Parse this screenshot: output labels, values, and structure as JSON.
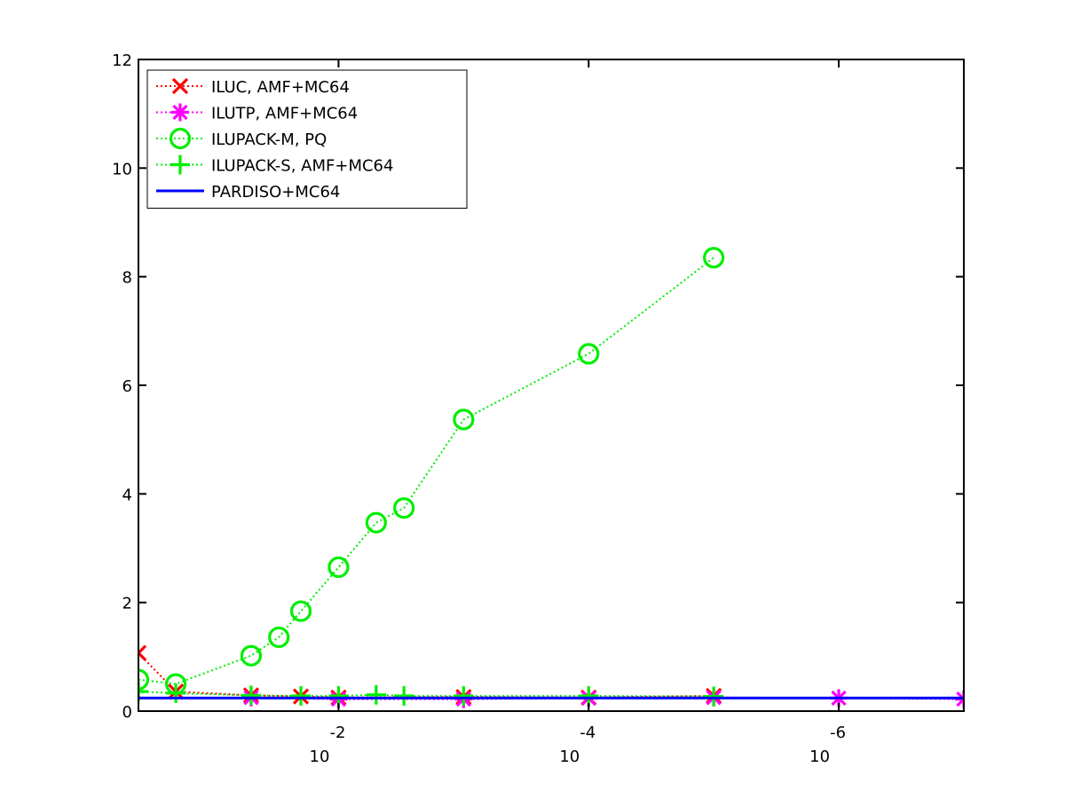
{
  "chart_data": {
    "type": "line",
    "title": "",
    "xlabel": "",
    "ylabel": "",
    "x_scale": "log",
    "x_reversed": true,
    "xlim": [
      0.3981,
      1e-07
    ],
    "ylim": [
      0,
      12
    ],
    "x_ticks": [
      {
        "value": 0.01,
        "base": "10",
        "exponent": "-2"
      },
      {
        "value": 0.0001,
        "base": "10",
        "exponent": "-4"
      },
      {
        "value": 1e-06,
        "base": "10",
        "exponent": "-6"
      }
    ],
    "y_ticks": [
      0,
      2,
      4,
      6,
      8,
      10,
      12
    ],
    "y_tick_labels": [
      "0",
      "2",
      "4",
      "6",
      "8",
      "10",
      "12"
    ],
    "grid": false,
    "legend_position": "top-left",
    "series": [
      {
        "name": "ILUC, AMF+MC64",
        "color": "#ff0000",
        "marker": "x",
        "line": "dotted",
        "points": [
          [
            0.3981,
            1.07
          ],
          [
            0.2,
            0.36
          ],
          [
            0.05,
            0.29
          ],
          [
            0.02,
            0.27
          ],
          [
            0.01,
            0.25
          ],
          [
            0.001,
            0.26
          ],
          [
            0.0001,
            0.25
          ],
          [
            1e-05,
            0.28
          ]
        ]
      },
      {
        "name": "ILUTP, AMF+MC64",
        "color": "#ff00ff",
        "marker": "asterisk",
        "line": "dotted",
        "points": [
          [
            0.05,
            0.25
          ],
          [
            0.01,
            0.22
          ],
          [
            0.001,
            0.22
          ],
          [
            0.0001,
            0.24
          ],
          [
            1e-05,
            0.25
          ],
          [
            1e-06,
            0.24
          ],
          [
            1e-07,
            0.22
          ]
        ]
      },
      {
        "name": "ILUPACK-M, PQ",
        "color": "#00ee00",
        "marker": "o",
        "line": "dotted",
        "points": [
          [
            0.3981,
            0.58
          ],
          [
            0.2,
            0.5
          ],
          [
            0.05,
            1.02
          ],
          [
            0.03,
            1.36
          ],
          [
            0.02,
            1.84
          ],
          [
            0.01,
            2.65
          ],
          [
            0.005,
            3.47
          ],
          [
            0.003,
            3.74
          ],
          [
            0.001,
            5.37
          ],
          [
            0.0001,
            6.58
          ],
          [
            1e-05,
            8.35
          ]
        ]
      },
      {
        "name": "ILUPACK-S, AMF+MC64",
        "color": "#00ee00",
        "marker": "plus",
        "line": "dotted",
        "points": [
          [
            0.3981,
            0.36
          ],
          [
            0.2,
            0.33
          ],
          [
            0.05,
            0.29
          ],
          [
            0.02,
            0.28
          ],
          [
            0.01,
            0.28
          ],
          [
            0.005,
            0.3
          ],
          [
            0.003,
            0.28
          ],
          [
            0.001,
            0.28
          ],
          [
            0.0001,
            0.28
          ],
          [
            1e-05,
            0.27
          ]
        ]
      },
      {
        "name": "PARDISO+MC64",
        "color": "#0000ff",
        "marker": "none",
        "line": "solid",
        "points": [
          [
            0.3981,
            0.24
          ],
          [
            1e-07,
            0.24
          ]
        ]
      }
    ]
  }
}
